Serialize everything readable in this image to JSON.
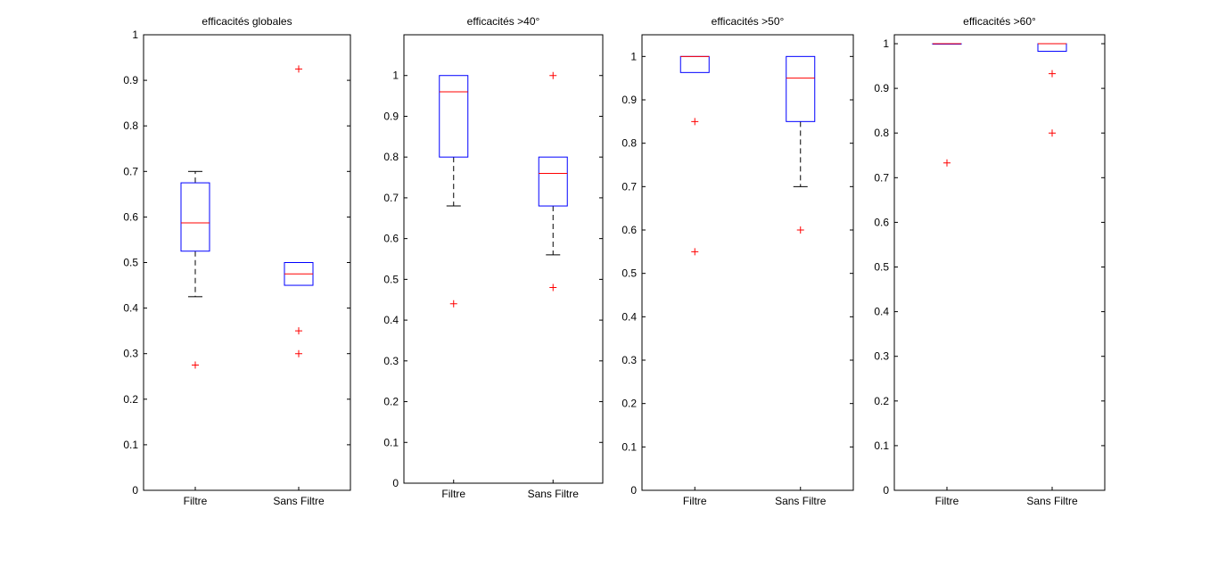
{
  "chart_data": [
    {
      "type": "box",
      "title": "efficacités globales",
      "categories": [
        "Filtre",
        "Sans Filtre"
      ],
      "ylim": [
        0,
        1
      ],
      "yticks": [
        "0",
        "0.1",
        "0.2",
        "0.3",
        "0.4",
        "0.5",
        "0.6",
        "0.7",
        "0.8",
        "0.9",
        "1"
      ],
      "series": [
        {
          "whisker_low": 0.425,
          "q1": 0.525,
          "median": 0.587,
          "q3": 0.675,
          "whisker_high": 0.7,
          "outliers": [
            0.275
          ]
        },
        {
          "whisker_low": 0.45,
          "q1": 0.45,
          "median": 0.475,
          "q3": 0.5,
          "whisker_high": 0.5,
          "outliers": [
            0.925,
            0.35,
            0.3
          ]
        }
      ]
    },
    {
      "type": "box",
      "title": "efficacités >40°",
      "categories": [
        "Filtre",
        "Sans Filtre"
      ],
      "ylim": [
        0,
        1.1
      ],
      "yticks": [
        "0",
        "0.1",
        "0.2",
        "0.3",
        "0.4",
        "0.5",
        "0.6",
        "0.7",
        "0.8",
        "0.9",
        "1"
      ],
      "series": [
        {
          "whisker_low": 0.68,
          "q1": 0.8,
          "median": 0.96,
          "q3": 1.0,
          "whisker_high": 1.0,
          "outliers": [
            0.44
          ]
        },
        {
          "whisker_low": 0.56,
          "q1": 0.68,
          "median": 0.76,
          "q3": 0.8,
          "whisker_high": 0.8,
          "outliers": [
            1.0,
            0.48
          ]
        }
      ]
    },
    {
      "type": "box",
      "title": "efficacités >50°",
      "categories": [
        "Filtre",
        "Sans Filtre"
      ],
      "ylim": [
        0,
        1.05
      ],
      "yticks": [
        "0",
        "0.1",
        "0.2",
        "0.3",
        "0.4",
        "0.5",
        "0.6",
        "0.7",
        "0.8",
        "0.9",
        "1"
      ],
      "series": [
        {
          "whisker_low": 0.963,
          "q1": 0.963,
          "median": 1.0,
          "q3": 1.0,
          "whisker_high": 1.0,
          "outliers": [
            0.85,
            0.55
          ]
        },
        {
          "whisker_low": 0.7,
          "q1": 0.85,
          "median": 0.95,
          "q3": 1.0,
          "whisker_high": 1.0,
          "outliers": [
            0.6
          ]
        }
      ]
    },
    {
      "type": "box",
      "title": "efficacités >60°",
      "categories": [
        "Filtre",
        "Sans Filtre"
      ],
      "ylim": [
        0,
        1.02
      ],
      "yticks": [
        "0",
        "0.1",
        "0.2",
        "0.3",
        "0.4",
        "0.5",
        "0.6",
        "0.7",
        "0.8",
        "0.9",
        "1"
      ],
      "series": [
        {
          "whisker_low": 1.0,
          "q1": 1.0,
          "median": 1.0,
          "q3": 1.0,
          "whisker_high": 1.0,
          "outliers": [
            0.733
          ]
        },
        {
          "whisker_low": 0.983,
          "q1": 0.983,
          "median": 1.0,
          "q3": 1.0,
          "whisker_high": 1.0,
          "outliers": [
            0.933,
            0.8
          ]
        }
      ]
    }
  ],
  "colors": {
    "box": "#0000ff",
    "median": "#ff0000",
    "whisker": "#000000",
    "outlier": "#ff0000",
    "axis": "#000000"
  }
}
